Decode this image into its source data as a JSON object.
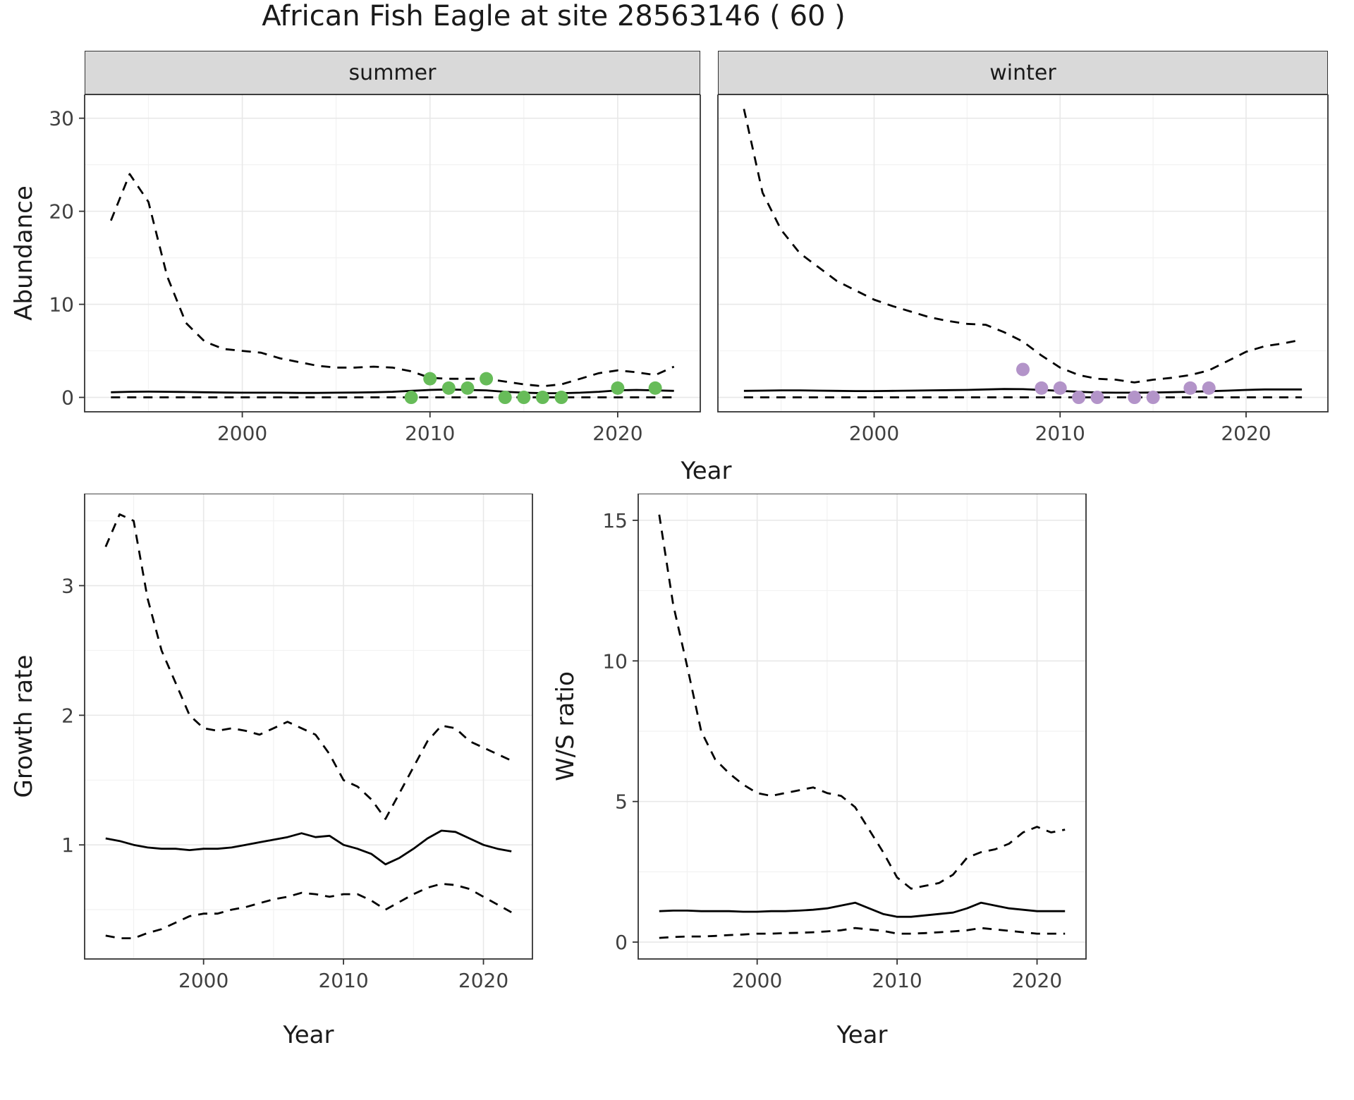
{
  "title": "African Fish Eagle at site 28563146 ( 60 )",
  "colors": {
    "line": "#000000",
    "panel_border": "#333333",
    "grid_major": "#e8e8e8",
    "grid_minor": "#f2f2f2",
    "strip_bg": "#d9d9d9",
    "summer_points": "#67bc59",
    "winter_points": "#b394c9"
  },
  "top": {
    "ylabel": "Abundance",
    "xlabel": "Year",
    "facets": [
      "summer",
      "winter"
    ]
  },
  "bottom_left": {
    "ylabel": "Growth rate",
    "xlabel": "Year"
  },
  "bottom_right": {
    "ylabel": "W/S ratio",
    "xlabel": "Year"
  },
  "chart_data": [
    {
      "id": "abundance-summer",
      "type": "line",
      "facet": "summer",
      "ylabel": "Abundance",
      "xlabel": "Year",
      "xlim": [
        1991.6,
        2024.4
      ],
      "ylim": [
        -1.55,
        32.55
      ],
      "xticks": [
        2000,
        2010,
        2020
      ],
      "yticks": [
        0,
        10,
        20,
        30
      ],
      "xminor": [
        1995,
        2005,
        2015
      ],
      "yminor": [
        5,
        15,
        25
      ],
      "x": [
        1993,
        1994,
        1995,
        1996,
        1997,
        1998,
        1999,
        2000,
        2001,
        2002,
        2003,
        2004,
        2005,
        2006,
        2007,
        2008,
        2009,
        2010,
        2011,
        2012,
        2013,
        2014,
        2015,
        2016,
        2017,
        2018,
        2019,
        2020,
        2021,
        2022,
        2023
      ],
      "series": [
        {
          "name": "upper_95ci",
          "style": "dashed",
          "values": [
            19,
            24,
            21,
            13,
            8,
            6,
            5.2,
            5,
            4.8,
            4.2,
            3.8,
            3.4,
            3.2,
            3.2,
            3.3,
            3.2,
            2.8,
            2.1,
            2,
            2,
            2,
            1.7,
            1.4,
            1.2,
            1.4,
            2,
            2.6,
            2.9,
            2.7,
            2.4,
            3.3
          ]
        },
        {
          "name": "median",
          "style": "solid",
          "values": [
            0.55,
            0.6,
            0.62,
            0.6,
            0.58,
            0.55,
            0.52,
            0.5,
            0.5,
            0.5,
            0.48,
            0.48,
            0.5,
            0.52,
            0.55,
            0.6,
            0.7,
            0.8,
            0.85,
            0.8,
            0.75,
            0.6,
            0.5,
            0.45,
            0.45,
            0.5,
            0.6,
            0.75,
            0.8,
            0.75,
            0.7
          ]
        },
        {
          "name": "lower_95ci",
          "style": "dashed",
          "values": [
            0,
            0,
            0,
            0,
            0,
            0,
            0,
            0,
            0,
            0,
            0,
            0,
            0,
            0,
            0,
            0,
            0,
            0,
            0,
            0,
            0,
            0,
            0,
            0,
            0,
            0,
            0,
            0,
            0,
            0,
            0
          ]
        }
      ],
      "points": {
        "name": "observed-counts",
        "color": "#67bc59",
        "x": [
          2009,
          2010,
          2011,
          2012,
          2013,
          2014,
          2015,
          2016,
          2017,
          2020,
          2022
        ],
        "y": [
          0,
          2,
          1,
          1,
          2,
          0,
          0,
          0,
          0,
          1,
          1
        ]
      }
    },
    {
      "id": "abundance-winter",
      "type": "line",
      "facet": "winter",
      "ylabel": "Abundance",
      "xlabel": "Year",
      "xlim": [
        1991.6,
        2024.4
      ],
      "ylim": [
        -1.55,
        32.55
      ],
      "xticks": [
        2000,
        2010,
        2020
      ],
      "yticks": [
        0,
        10,
        20,
        30
      ],
      "xminor": [
        1995,
        2005,
        2015
      ],
      "yminor": [
        5,
        15,
        25
      ],
      "x": [
        1993,
        1994,
        1995,
        1996,
        1997,
        1998,
        1999,
        2000,
        2001,
        2002,
        2003,
        2004,
        2005,
        2006,
        2007,
        2008,
        2009,
        2010,
        2011,
        2012,
        2013,
        2014,
        2015,
        2016,
        2017,
        2018,
        2019,
        2020,
        2021,
        2022,
        2023
      ],
      "series": [
        {
          "name": "upper_95ci",
          "style": "dashed",
          "values": [
            31,
            22,
            18,
            15.5,
            14,
            12.5,
            11.5,
            10.5,
            9.8,
            9.2,
            8.6,
            8.2,
            7.9,
            7.8,
            7,
            6,
            4.5,
            3.2,
            2.4,
            2,
            1.9,
            1.6,
            1.9,
            2.1,
            2.4,
            2.9,
            3.9,
            4.9,
            5.5,
            5.8,
            6.2
          ]
        },
        {
          "name": "median",
          "style": "solid",
          "values": [
            0.7,
            0.72,
            0.75,
            0.75,
            0.72,
            0.7,
            0.68,
            0.68,
            0.7,
            0.72,
            0.75,
            0.78,
            0.8,
            0.85,
            0.9,
            0.88,
            0.8,
            0.7,
            0.6,
            0.52,
            0.5,
            0.5,
            0.52,
            0.56,
            0.6,
            0.66,
            0.72,
            0.8,
            0.85,
            0.85,
            0.85
          ]
        },
        {
          "name": "lower_95ci",
          "style": "dashed",
          "values": [
            0,
            0,
            0,
            0,
            0,
            0,
            0,
            0,
            0,
            0,
            0,
            0,
            0,
            0,
            0,
            0,
            0,
            0,
            0,
            0,
            0,
            0,
            0,
            0,
            0,
            0,
            0,
            0,
            0,
            0,
            0
          ]
        }
      ],
      "points": {
        "name": "observed-counts",
        "color": "#b394c9",
        "x": [
          2008,
          2009,
          2010,
          2011,
          2012,
          2014,
          2015,
          2017,
          2018
        ],
        "y": [
          3,
          1,
          1,
          0,
          0,
          0,
          0,
          1,
          1
        ]
      }
    },
    {
      "id": "growth-rate",
      "type": "line",
      "ylabel": "Growth rate",
      "xlabel": "Year",
      "xlim": [
        1991.5,
        2023.5
      ],
      "ylim": [
        0.12,
        3.71
      ],
      "xticks": [
        2000,
        2010,
        2020
      ],
      "yticks": [
        1,
        2,
        3
      ],
      "xminor": [
        1995,
        2005,
        2015
      ],
      "yminor": [
        0.5,
        1.5,
        2.5,
        3.5
      ],
      "x": [
        1993,
        1994,
        1995,
        1996,
        1997,
        1998,
        1999,
        2000,
        2001,
        2002,
        2003,
        2004,
        2005,
        2006,
        2007,
        2008,
        2009,
        2010,
        2011,
        2012,
        2013,
        2014,
        2015,
        2016,
        2017,
        2018,
        2019,
        2020,
        2021,
        2022
      ],
      "series": [
        {
          "name": "upper_95ci",
          "style": "dashed",
          "values": [
            3.3,
            3.55,
            3.5,
            2.9,
            2.5,
            2.25,
            2.0,
            1.9,
            1.88,
            1.9,
            1.88,
            1.85,
            1.9,
            1.95,
            1.9,
            1.85,
            1.7,
            1.5,
            1.45,
            1.35,
            1.2,
            1.4,
            1.6,
            1.8,
            1.92,
            1.9,
            1.8,
            1.75,
            1.7,
            1.65
          ]
        },
        {
          "name": "median",
          "style": "solid",
          "values": [
            1.05,
            1.03,
            1.0,
            0.98,
            0.97,
            0.97,
            0.96,
            0.97,
            0.97,
            0.98,
            1.0,
            1.02,
            1.04,
            1.06,
            1.09,
            1.06,
            1.07,
            1.0,
            0.97,
            0.93,
            0.85,
            0.9,
            0.97,
            1.05,
            1.11,
            1.1,
            1.05,
            1.0,
            0.97,
            0.95
          ]
        },
        {
          "name": "lower_95ci",
          "style": "dashed",
          "values": [
            0.3,
            0.28,
            0.28,
            0.32,
            0.35,
            0.4,
            0.45,
            0.47,
            0.47,
            0.5,
            0.52,
            0.55,
            0.58,
            0.6,
            0.63,
            0.62,
            0.6,
            0.62,
            0.62,
            0.57,
            0.5,
            0.56,
            0.62,
            0.67,
            0.7,
            0.69,
            0.66,
            0.6,
            0.54,
            0.48
          ]
        }
      ]
    },
    {
      "id": "winter-summer-ratio",
      "type": "line",
      "ylabel": "W/S ratio",
      "xlabel": "Year",
      "xlim": [
        1991.5,
        2023.5
      ],
      "ylim": [
        -0.6,
        15.95
      ],
      "xticks": [
        2000,
        2010,
        2020
      ],
      "yticks": [
        0,
        5,
        10,
        15
      ],
      "xminor": [
        1995,
        2005,
        2015
      ],
      "yminor": [
        2.5,
        7.5,
        12.5
      ],
      "x": [
        1993,
        1994,
        1995,
        1996,
        1997,
        1998,
        1999,
        2000,
        2001,
        2002,
        2003,
        2004,
        2005,
        2006,
        2007,
        2008,
        2009,
        2010,
        2011,
        2012,
        2013,
        2014,
        2015,
        2016,
        2017,
        2018,
        2019,
        2020,
        2021,
        2022
      ],
      "series": [
        {
          "name": "upper_95ci",
          "style": "dashed",
          "values": [
            15.2,
            12,
            9.8,
            7.5,
            6.5,
            6.0,
            5.6,
            5.3,
            5.2,
            5.3,
            5.4,
            5.5,
            5.3,
            5.2,
            4.8,
            4.0,
            3.2,
            2.3,
            1.9,
            2.0,
            2.1,
            2.4,
            3.0,
            3.2,
            3.3,
            3.5,
            3.9,
            4.1,
            3.9,
            4.0
          ]
        },
        {
          "name": "median",
          "style": "solid",
          "values": [
            1.1,
            1.12,
            1.12,
            1.1,
            1.1,
            1.1,
            1.08,
            1.08,
            1.1,
            1.1,
            1.12,
            1.15,
            1.2,
            1.3,
            1.4,
            1.2,
            1.0,
            0.9,
            0.9,
            0.95,
            1.0,
            1.05,
            1.2,
            1.4,
            1.3,
            1.2,
            1.15,
            1.1,
            1.1,
            1.1
          ]
        },
        {
          "name": "lower_95ci",
          "style": "dashed",
          "values": [
            0.15,
            0.18,
            0.2,
            0.2,
            0.22,
            0.25,
            0.27,
            0.3,
            0.3,
            0.32,
            0.33,
            0.35,
            0.38,
            0.42,
            0.5,
            0.45,
            0.4,
            0.3,
            0.3,
            0.32,
            0.35,
            0.38,
            0.42,
            0.5,
            0.45,
            0.4,
            0.35,
            0.3,
            0.3,
            0.3
          ]
        }
      ]
    }
  ]
}
